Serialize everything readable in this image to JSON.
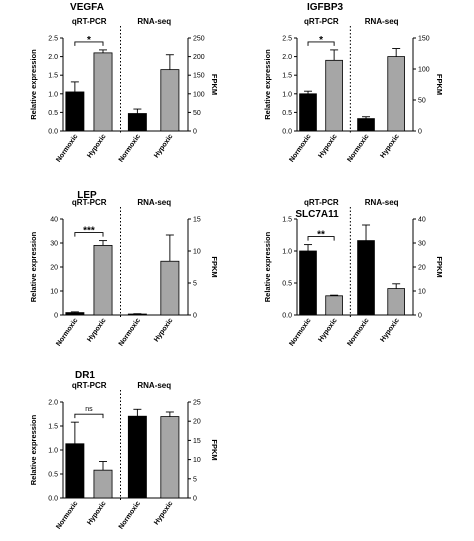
{
  "chart_data": [
    {
      "type": "bar",
      "title": "VEGFA",
      "left": {
        "label": "qRT-PCR",
        "ylabel": "Relative expression",
        "ylim": [
          0,
          2.5
        ],
        "ticks": [
          "0.0",
          "0.5",
          "1.0",
          "1.5",
          "2.0",
          "2.5"
        ],
        "categories": [
          "Normoxic",
          "Hypoxic"
        ],
        "values": [
          1.05,
          2.1
        ],
        "errors": [
          0.27,
          0.08
        ],
        "significance": "*"
      },
      "right": {
        "label": "RNA-seq",
        "ylabel": "FPKM",
        "ylim": [
          0,
          250
        ],
        "ticks": [
          "0",
          "50",
          "100",
          "150",
          "200",
          "250"
        ],
        "categories": [
          "Normoxic",
          "Hypoxic"
        ],
        "values": [
          47,
          165
        ],
        "errors": [
          12,
          40
        ]
      }
    },
    {
      "type": "bar",
      "title": "IGFBP3",
      "left": {
        "label": "qRT-PCR",
        "ylabel": "Relative expression",
        "ylim": [
          0,
          2.5
        ],
        "ticks": [
          "0.0",
          "0.5",
          "1.0",
          "1.5",
          "2.0",
          "2.5"
        ],
        "categories": [
          "Normoxic",
          "Hypoxic"
        ],
        "values": [
          1.0,
          1.9
        ],
        "errors": [
          0.07,
          0.28
        ],
        "significance": "*"
      },
      "right": {
        "label": "RNA-seq",
        "ylabel": "FPKM",
        "ylim": [
          0,
          150
        ],
        "ticks": [
          "0",
          "50",
          "100",
          "150"
        ],
        "categories": [
          "Normoxic",
          "Hypoxic"
        ],
        "values": [
          20,
          120
        ],
        "errors": [
          3,
          13
        ]
      }
    },
    {
      "type": "bar",
      "title": "LEP",
      "left": {
        "label": "qRT-PCR",
        "ylabel": "Relative expression",
        "ylim": [
          0,
          40
        ],
        "ticks": [
          "0",
          "10",
          "20",
          "30",
          "40"
        ],
        "categories": [
          "Normoxic",
          "Hypoxic"
        ],
        "values": [
          1.0,
          29.0
        ],
        "errors": [
          0.3,
          2.0
        ],
        "significance": "***"
      },
      "right": {
        "label": "RNA-seq",
        "ylabel": "FPKM",
        "ylim": [
          0,
          15
        ],
        "ticks": [
          "0",
          "5",
          "10",
          "15"
        ],
        "categories": [
          "Normoxic",
          "Hypoxic"
        ],
        "values": [
          0.15,
          8.4
        ],
        "errors": [
          0.05,
          4.1
        ]
      }
    },
    {
      "type": "bar",
      "title": "SLC7A11",
      "left": {
        "label": "qRT-PCR",
        "ylabel": "Relative expression",
        "ylim": [
          0,
          1.5
        ],
        "ticks": [
          "0.0",
          "0.5",
          "1.0",
          "1.5"
        ],
        "categories": [
          "Normoxic",
          "Hypoxic"
        ],
        "values": [
          1.0,
          0.3
        ],
        "errors": [
          0.1,
          0.01
        ],
        "significance": "**"
      },
      "right": {
        "label": "RNA-seq",
        "ylabel": "FPKM",
        "ylim": [
          0,
          40
        ],
        "ticks": [
          "0",
          "10",
          "20",
          "30",
          "40"
        ],
        "categories": [
          "Normoxic",
          "Hypoxic"
        ],
        "values": [
          31,
          11
        ],
        "errors": [
          6.5,
          2
        ]
      }
    },
    {
      "type": "bar",
      "title": "DR1",
      "left": {
        "label": "qRT-PCR",
        "ylabel": "Relative expression",
        "ylim": [
          0,
          2.0
        ],
        "ticks": [
          "0.0",
          "0.5",
          "1.0",
          "1.5",
          "2.0"
        ],
        "categories": [
          "Normoxic",
          "Hypoxic"
        ],
        "values": [
          1.13,
          0.58
        ],
        "errors": [
          0.45,
          0.18
        ],
        "significance": "ns"
      },
      "right": {
        "label": "RNA-seq",
        "ylabel": "FPKM",
        "ylim": [
          0,
          25
        ],
        "ticks": [
          "0",
          "5",
          "10",
          "15",
          "20",
          "25"
        ],
        "categories": [
          "Normoxic",
          "Hypoxic"
        ],
        "values": [
          21.3,
          21.2
        ],
        "errors": [
          1.8,
          1.2
        ]
      }
    }
  ],
  "colors": {
    "normoxic": "#000000",
    "hypoxic": "#a6a6a6",
    "stroke": "#000000"
  }
}
